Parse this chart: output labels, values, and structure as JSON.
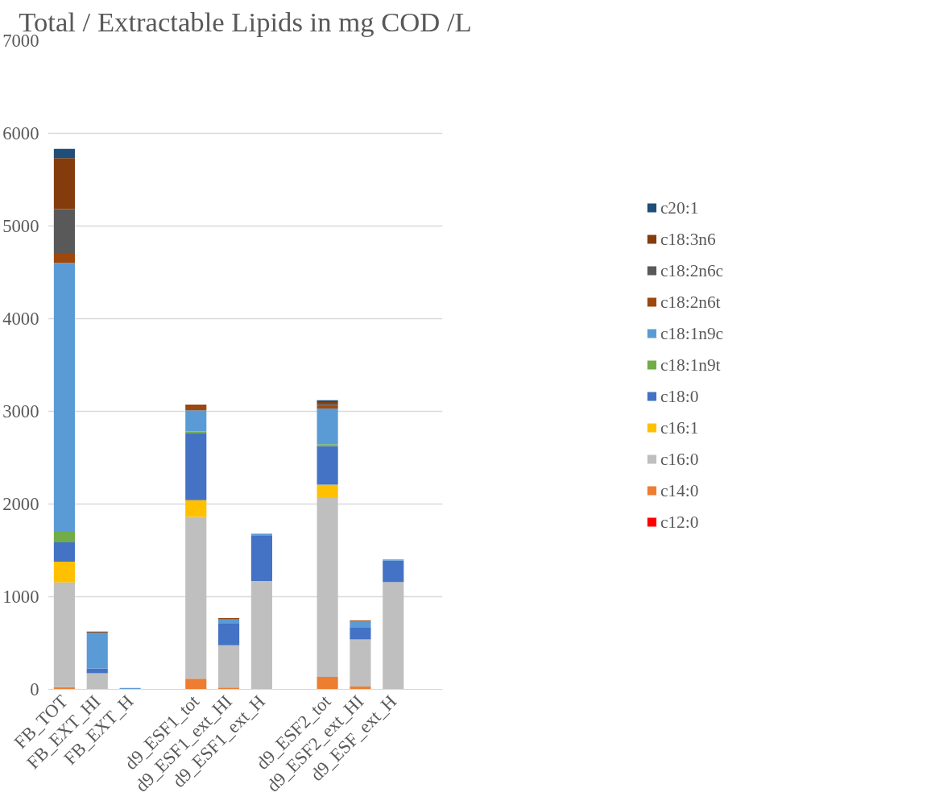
{
  "chart_data": {
    "type": "bar",
    "stacked": true,
    "title": "Total / Extractable Lipids in mg COD /L",
    "categories": [
      "FB_TOT",
      "FB_EXT_HI",
      "FB_EXT_H",
      null,
      "d9_ESF1_tot",
      "d9_ESF1_ext_HI",
      "d9_ESF1_ext_H",
      null,
      "d9_ESF2_tot",
      "d9_ESF2_ext_HI",
      "d9_ESF_ext_H",
      null
    ],
    "series": [
      {
        "name": "c12:0",
        "color": "#ff0000",
        "values": [
          5,
          0,
          0,
          null,
          5,
          0,
          0,
          null,
          5,
          0,
          0,
          null
        ]
      },
      {
        "name": "c14:0",
        "color": "#ed7d31",
        "values": [
          20,
          null,
          0,
          null,
          110,
          20,
          0,
          null,
          130,
          30,
          0,
          null
        ]
      },
      {
        "name": "c16:0",
        "color": "#bfbfbf",
        "values": [
          1130,
          174,
          0,
          null,
          1745,
          456,
          1170,
          null,
          1938,
          510,
          1158,
          null
        ]
      },
      {
        "name": "c16:1",
        "color": "#ffc000",
        "values": [
          223,
          0,
          0,
          null,
          181,
          0,
          0,
          null,
          135,
          0,
          0,
          null
        ]
      },
      {
        "name": "c18:0",
        "color": "#4472c4",
        "values": [
          208,
          52,
          0,
          null,
          726,
          232,
          494,
          null,
          417,
          131,
          232,
          null
        ]
      },
      {
        "name": "c18:1n9t",
        "color": "#70ad47",
        "values": [
          123,
          0,
          0,
          null,
          16,
          0,
          0,
          null,
          20,
          0,
          0,
          null
        ]
      },
      {
        "name": "c18:1n9c",
        "color": "#5b9bd5",
        "values": [
          2893,
          387,
          15,
          null,
          228,
          46,
          16,
          null,
          386,
          62,
          12,
          null
        ]
      },
      {
        "name": "c18:2n6t",
        "color": "#9e480e",
        "values": [
          99,
          10,
          0,
          null,
          46,
          15,
          0,
          null,
          27,
          11,
          0,
          null
        ]
      },
      {
        "name": "c18:2n6c",
        "color": "#595959",
        "values": [
          482,
          0,
          0,
          null,
          0,
          0,
          0,
          null,
          23,
          0,
          0,
          null
        ]
      },
      {
        "name": "c18:3n6",
        "color": "#843c0c",
        "values": [
          550,
          0,
          0,
          null,
          15,
          0,
          0,
          null,
          19,
          0,
          0,
          null
        ]
      },
      {
        "name": "c20:1",
        "color": "#1f4e79",
        "values": [
          100,
          0,
          0,
          null,
          0,
          0,
          0,
          null,
          20,
          0,
          0,
          null
        ]
      }
    ],
    "ylim": [
      0,
      7000
    ],
    "yticks": [
      0,
      1000,
      2000,
      3000,
      4000,
      5000,
      6000,
      7000
    ],
    "grid": "y",
    "legend": "right"
  }
}
